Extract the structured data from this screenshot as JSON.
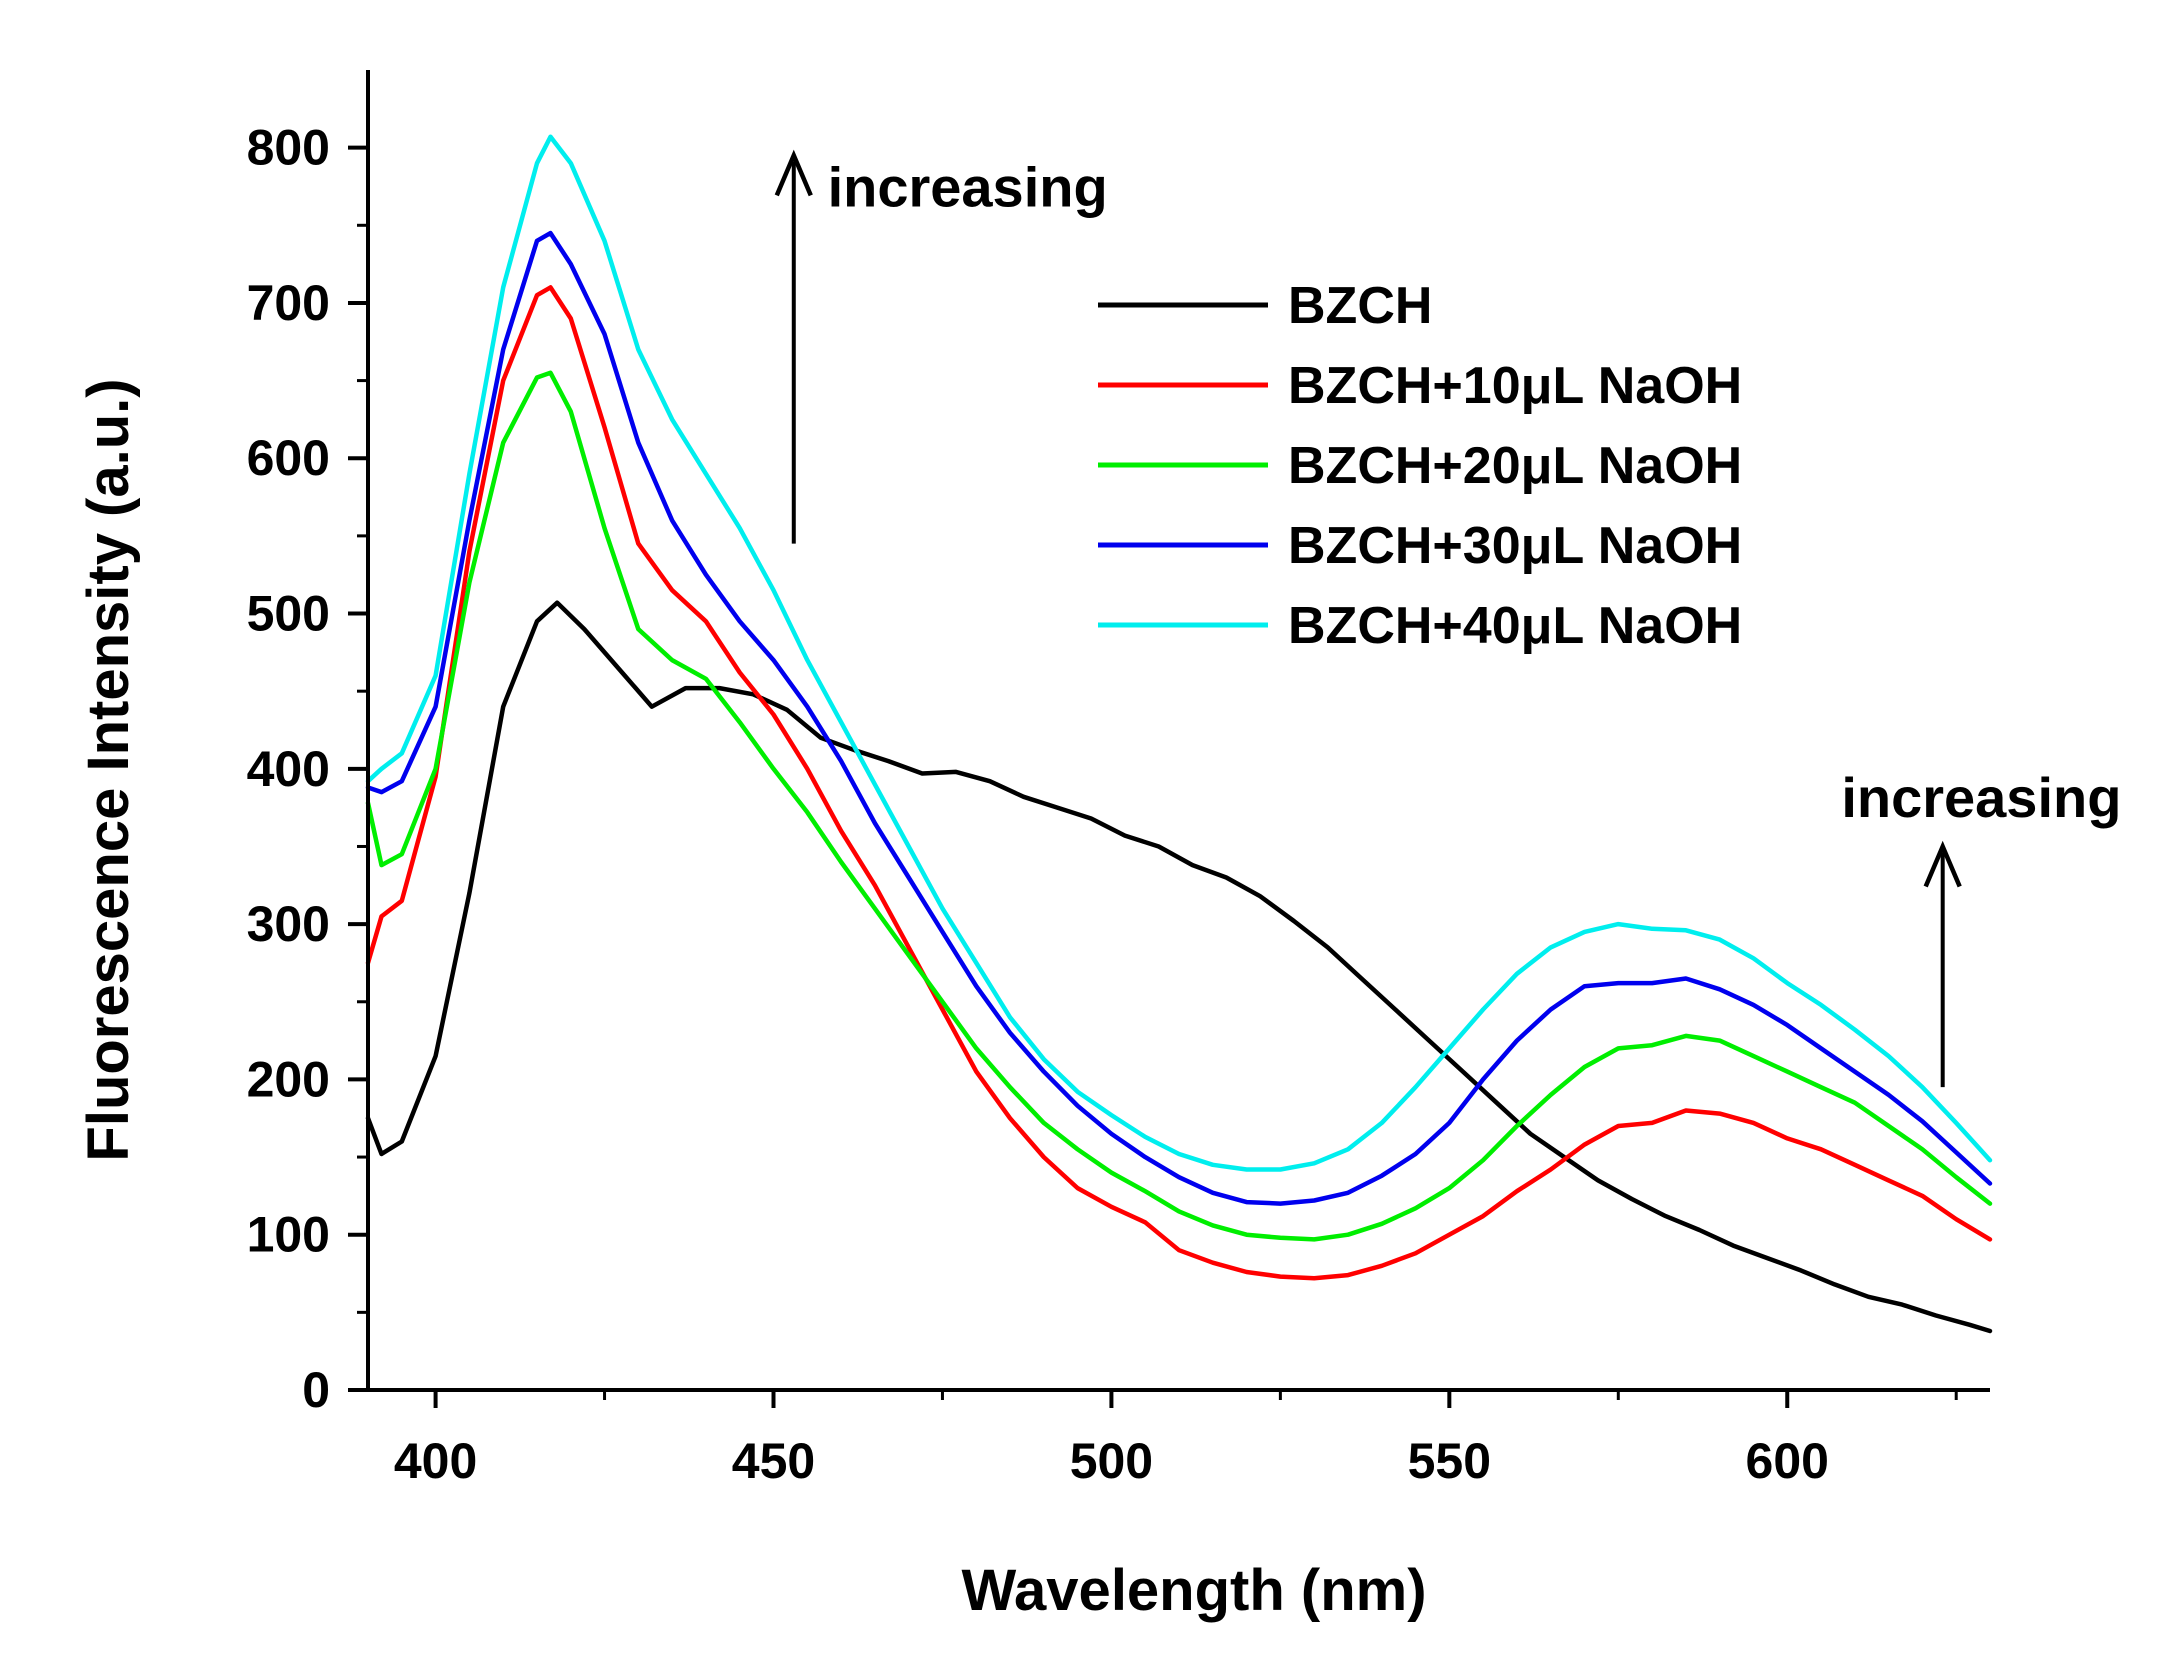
{
  "chart_data": {
    "type": "line",
    "title": "",
    "xlabel": "Wavelength (nm)",
    "ylabel": "Fluorescence Intensity (a.u.)",
    "xlim": [
      390,
      630
    ],
    "ylim": [
      0,
      850
    ],
    "xticks": [
      400,
      450,
      500,
      550,
      600
    ],
    "xticks_minor": [
      425,
      475,
      525,
      575,
      625
    ],
    "yticks": [
      0,
      100,
      200,
      300,
      400,
      500,
      600,
      700,
      800
    ],
    "yticks_minor": [
      50,
      150,
      250,
      350,
      450,
      550,
      650,
      750
    ],
    "xtick_labels": [
      "400",
      "450",
      "500",
      "550",
      "600"
    ],
    "ytick_labels": [
      "0",
      "100",
      "200",
      "300",
      "400",
      "500",
      "600",
      "700",
      "800"
    ],
    "grid": false,
    "legend_position": "top-right",
    "series": [
      {
        "name": "BZCH",
        "color": "#000000",
        "x": [
          390,
          392,
          395,
          400,
          405,
          410,
          415,
          418,
          422,
          428,
          432,
          437,
          442,
          447,
          452,
          457,
          462,
          467,
          472,
          477,
          482,
          487,
          492,
          497,
          502,
          507,
          512,
          517,
          522,
          527,
          532,
          537,
          542,
          547,
          552,
          557,
          562,
          567,
          572,
          577,
          582,
          587,
          592,
          597,
          602,
          607,
          612,
          617,
          622,
          627,
          630
        ],
        "values": [
          175,
          152,
          160,
          215,
          320,
          440,
          495,
          507,
          490,
          460,
          440,
          452,
          452,
          448,
          438,
          420,
          412,
          405,
          397,
          398,
          392,
          382,
          375,
          368,
          357,
          350,
          338,
          330,
          318,
          302,
          285,
          265,
          245,
          225,
          205,
          185,
          165,
          150,
          135,
          123,
          112,
          103,
          93,
          85,
          77,
          68,
          60,
          55,
          48,
          42,
          38
        ]
      },
      {
        "name": "BZCH+10μL NaOH",
        "color": "#ff0000",
        "x": [
          390,
          392,
          395,
          400,
          405,
          410,
          415,
          417,
          420,
          425,
          430,
          435,
          440,
          445,
          450,
          455,
          460,
          465,
          470,
          475,
          480,
          485,
          490,
          495,
          500,
          505,
          510,
          515,
          520,
          525,
          530,
          535,
          540,
          545,
          550,
          555,
          560,
          565,
          570,
          575,
          580,
          585,
          590,
          595,
          600,
          605,
          610,
          615,
          620,
          625,
          630
        ],
        "values": [
          275,
          305,
          315,
          395,
          540,
          650,
          705,
          710,
          690,
          620,
          545,
          515,
          495,
          462,
          435,
          400,
          360,
          325,
          285,
          245,
          205,
          175,
          150,
          130,
          118,
          108,
          90,
          82,
          76,
          73,
          72,
          74,
          80,
          88,
          100,
          112,
          128,
          142,
          158,
          170,
          172,
          180,
          178,
          172,
          162,
          155,
          145,
          135,
          125,
          110,
          97
        ]
      },
      {
        "name": "BZCH+20μL NaOH",
        "color": "#00ee00",
        "x": [
          390,
          392,
          395,
          400,
          405,
          410,
          415,
          417,
          420,
          425,
          430,
          435,
          440,
          445,
          450,
          455,
          460,
          465,
          470,
          475,
          480,
          485,
          490,
          495,
          500,
          505,
          510,
          515,
          520,
          525,
          530,
          535,
          540,
          545,
          550,
          555,
          560,
          565,
          570,
          575,
          580,
          585,
          590,
          595,
          600,
          605,
          610,
          615,
          620,
          625,
          630
        ],
        "values": [
          378,
          338,
          345,
          400,
          520,
          610,
          652,
          655,
          630,
          555,
          490,
          470,
          458,
          430,
          400,
          372,
          340,
          310,
          280,
          250,
          220,
          195,
          172,
          155,
          140,
          128,
          115,
          106,
          100,
          98,
          97,
          100,
          107,
          117,
          130,
          148,
          170,
          190,
          208,
          220,
          222,
          228,
          225,
          215,
          205,
          195,
          185,
          170,
          155,
          137,
          120
        ]
      },
      {
        "name": "BZCH+30μL NaOH",
        "color": "#0000ee",
        "x": [
          390,
          392,
          395,
          400,
          405,
          410,
          415,
          417,
          420,
          425,
          430,
          435,
          440,
          445,
          450,
          455,
          460,
          465,
          470,
          475,
          480,
          485,
          490,
          495,
          500,
          505,
          510,
          515,
          520,
          525,
          530,
          535,
          540,
          545,
          550,
          555,
          560,
          565,
          570,
          575,
          580,
          585,
          590,
          595,
          600,
          605,
          610,
          615,
          620,
          625,
          630
        ],
        "values": [
          388,
          385,
          392,
          440,
          560,
          670,
          740,
          745,
          725,
          680,
          610,
          560,
          525,
          495,
          470,
          440,
          405,
          365,
          330,
          295,
          260,
          230,
          205,
          183,
          165,
          150,
          137,
          127,
          121,
          120,
          122,
          127,
          138,
          152,
          172,
          200,
          225,
          245,
          260,
          262,
          262,
          265,
          258,
          248,
          235,
          220,
          205,
          190,
          173,
          153,
          133
        ]
      },
      {
        "name": "BZCH+40μL NaOH",
        "color": "#00eeee",
        "x": [
          390,
          392,
          395,
          400,
          405,
          410,
          415,
          417,
          420,
          425,
          430,
          435,
          440,
          445,
          450,
          455,
          460,
          465,
          470,
          475,
          480,
          485,
          490,
          495,
          500,
          505,
          510,
          515,
          520,
          525,
          530,
          535,
          540,
          545,
          550,
          555,
          560,
          565,
          570,
          575,
          580,
          585,
          590,
          595,
          600,
          605,
          610,
          615,
          620,
          625,
          630
        ],
        "values": [
          392,
          400,
          410,
          460,
          590,
          710,
          790,
          807,
          790,
          740,
          670,
          625,
          590,
          555,
          515,
          470,
          430,
          390,
          350,
          310,
          275,
          240,
          213,
          192,
          177,
          163,
          152,
          145,
          142,
          142,
          146,
          155,
          172,
          195,
          220,
          245,
          268,
          285,
          295,
          300,
          297,
          296,
          290,
          278,
          262,
          248,
          232,
          215,
          195,
          172,
          148
        ]
      }
    ],
    "annotations": [
      {
        "text": "increasing",
        "arrow_from": [
          453,
          545
        ],
        "arrow_to": [
          453,
          795
        ],
        "text_anchor": [
          458,
          775
        ]
      },
      {
        "text": "increasing",
        "arrow_from": [
          623,
          195
        ],
        "arrow_to": [
          623,
          350
        ],
        "text_anchor": [
          608,
          382
        ]
      }
    ]
  }
}
